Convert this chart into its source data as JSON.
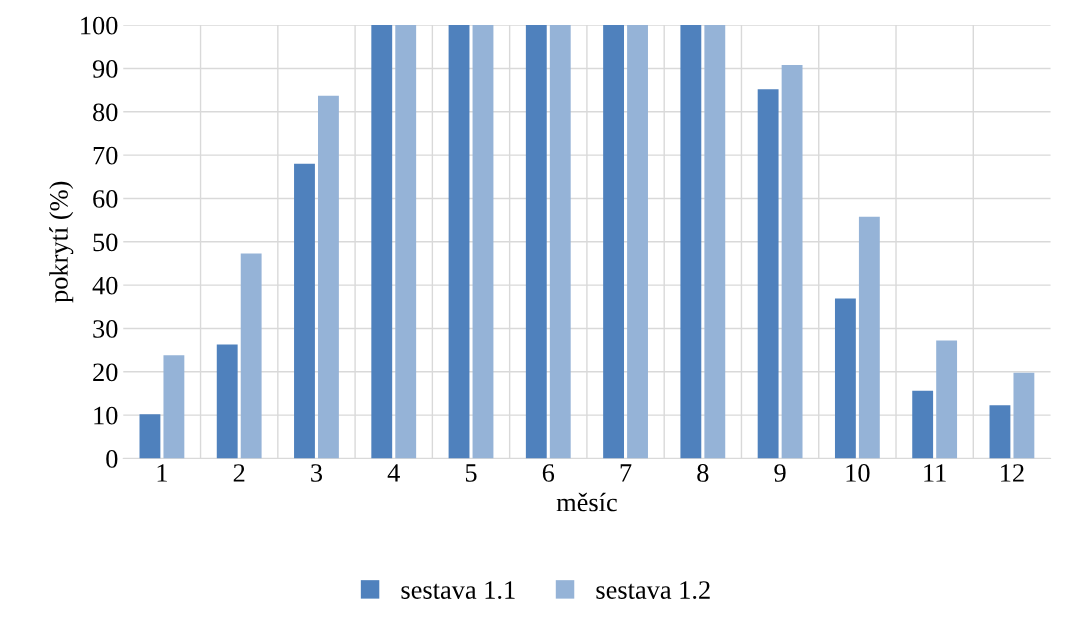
{
  "chart_data": {
    "type": "bar",
    "xlabel": "měsíc",
    "ylabel": "pokrytí (%)",
    "categories": [
      "1",
      "2",
      "3",
      "4",
      "5",
      "6",
      "7",
      "8",
      "9",
      "10",
      "11",
      "12"
    ],
    "series": [
      {
        "name": "sestava 1.1",
        "color": "#4f81bd",
        "values": [
          10.2,
          26.3,
          68,
          100,
          100,
          100,
          100,
          100,
          85.2,
          36.9,
          15.6,
          12.3
        ]
      },
      {
        "name": "sestava 1.2",
        "color": "#95b3d7",
        "values": [
          23.8,
          47.3,
          83.7,
          100,
          100,
          100,
          100,
          100,
          90.8,
          55.8,
          27.2,
          19.8
        ]
      }
    ],
    "ylim": [
      0,
      100
    ],
    "yticks": [
      0,
      10,
      20,
      30,
      40,
      50,
      60,
      70,
      80,
      90,
      100
    ],
    "grid": true,
    "legend": "bottom"
  }
}
